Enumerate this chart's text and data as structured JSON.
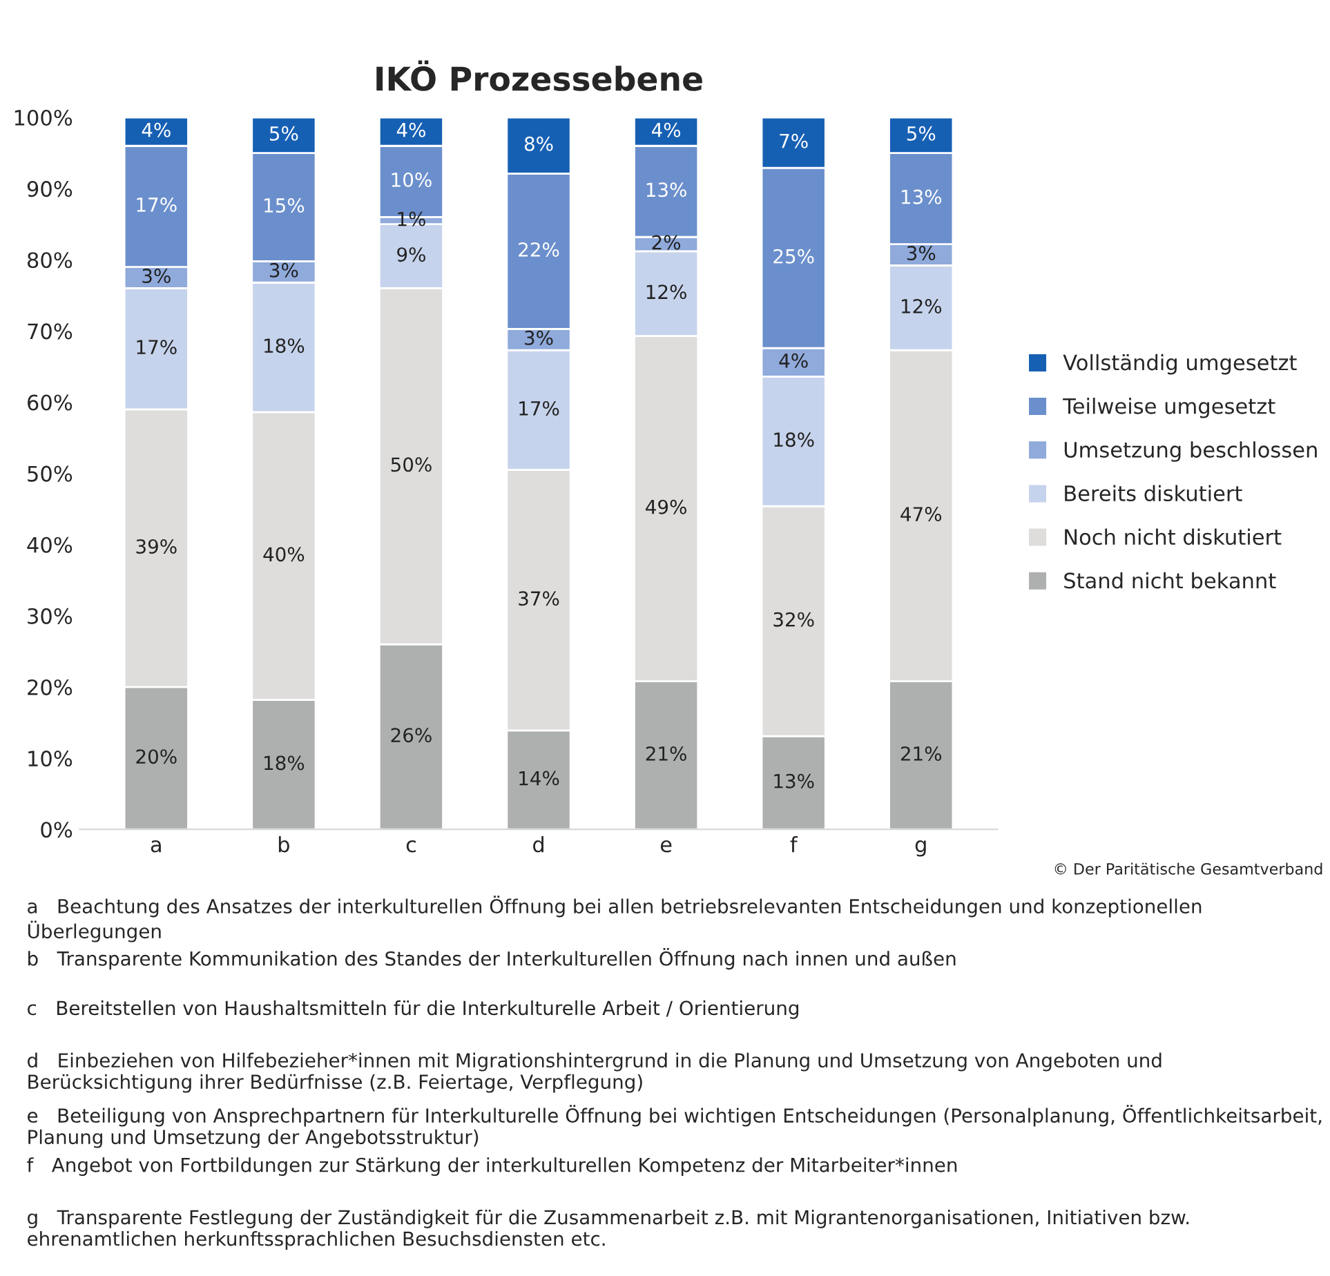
{
  "chart_data": {
    "type": "bar",
    "title": "IKÖ Prozessebene",
    "stacked": true,
    "categories": [
      "a",
      "b",
      "c",
      "d",
      "e",
      "f",
      "g"
    ],
    "series": [
      {
        "name": "Stand nicht bekannt",
        "color": "#aeb0b0",
        "values": [
          20,
          18.2,
          26,
          13.9,
          20.8,
          13.1,
          20.8
        ],
        "value_labels": [
          "20%",
          "18%",
          "26%",
          "14%",
          "21%",
          "13%",
          "21%"
        ]
      },
      {
        "name": "Noch nicht diskutiert",
        "color": "#dedddc",
        "values": [
          39,
          40.4,
          50,
          36.6,
          48.5,
          32.3,
          46.5
        ],
        "value_labels": [
          "39%",
          "40%",
          "50%",
          "37%",
          "49%",
          "32%",
          "47%"
        ]
      },
      {
        "name": "Bereits diskutiert",
        "color": "#c6d3ec",
        "values": [
          17,
          18.2,
          9,
          16.8,
          11.9,
          18.2,
          11.9
        ],
        "value_labels": [
          "17%",
          "18%",
          "9%",
          "17%",
          "12%",
          "18%",
          "12%"
        ]
      },
      {
        "name": "Umsetzung beschlossen",
        "color": "#8faadb",
        "values": [
          3,
          3,
          1,
          3,
          2,
          4,
          3
        ],
        "value_labels": [
          "3%",
          "3%",
          "1%",
          "3%",
          "2%",
          "4%",
          "3%"
        ]
      },
      {
        "name": "Teilweise umgesetzt",
        "color": "#6b8fcc",
        "values": [
          17,
          15.2,
          10,
          21.8,
          12.8,
          25.3,
          12.8
        ],
        "value_labels": [
          "17%",
          "15%",
          "10%",
          "22%",
          "13%",
          "25%",
          "13%"
        ]
      },
      {
        "name": "Vollständig umgesetzt",
        "color": "#1660b4",
        "values": [
          4,
          5,
          4,
          7.9,
          4,
          7.1,
          5
        ],
        "value_labels": [
          "4%",
          "5%",
          "4%",
          "8%",
          "4%",
          "7%",
          "5%"
        ]
      }
    ],
    "ylim": [
      0,
      100
    ],
    "yticks": [
      {
        "value": 0,
        "label": "0%"
      },
      {
        "value": 10,
        "label": "10%"
      },
      {
        "value": 20,
        "label": "20%"
      },
      {
        "value": 30,
        "label": "30%"
      },
      {
        "value": 40,
        "label": "40%"
      },
      {
        "value": 50,
        "label": "50%"
      },
      {
        "value": 60,
        "label": "60%"
      },
      {
        "value": 70,
        "label": "70%"
      },
      {
        "value": 80,
        "label": "80%"
      },
      {
        "value": 90,
        "label": "90%"
      },
      {
        "value": 100,
        "label": "100%"
      }
    ],
    "grid": false,
    "legend": "right",
    "annotations": [
      "© Der Paritätische Gesamtverband",
      "a   Beachtung des Ansatzes der interkulturellen Öffnung bei allen betriebsrelevanten Entscheidungen und konzeptionellen Überlegungen",
      "b   Transparente Kommunikation des Standes der Interkulturellen Öffnung nach innen und außen",
      "c   Bereitstellen von Haushaltsmitteln für die Interkulturelle Arbeit / Orientierung",
      "d   Einbeziehen von Hilfebezieher*innen mit Migrationshintergrund in die Planung und Umsetzung von Angeboten und Berücksichtigung ihrer Bedürfnisse (z.B. Feiertage, Verpflegung)",
      "e   Beteiligung von Ansprechpartnern für Interkulturelle Öffnung bei wichtigen Entscheidungen (Personalplanung, Öffentlichkeitsarbeit, Planung und Umsetzung der Angebotsstruktur)",
      "f   Angebot von Fortbildungen zur Stärkung der interkulturellen Kompetenz der Mitarbeiter*innen",
      "g   Transparente Festlegung der Zuständigkeit für die Zusammenarbeit z.B. mit Migrantenorganisationen, Initiativen bzw. ehrenamtlichen herkunftssprachlichen Besuchsdiensten etc."
    ]
  }
}
